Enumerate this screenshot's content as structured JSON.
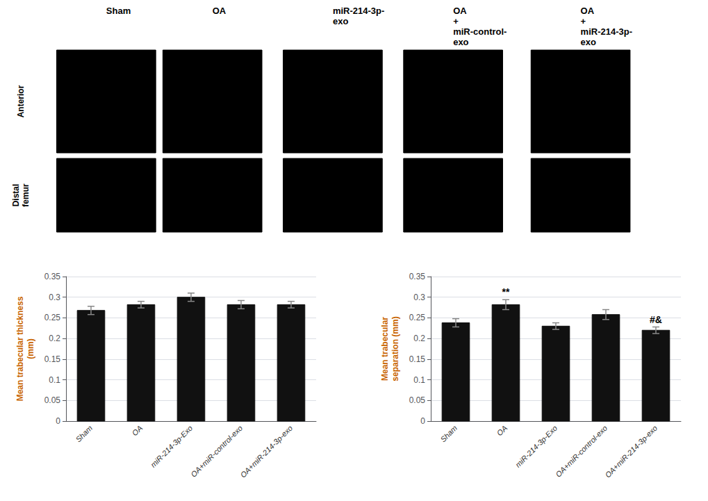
{
  "chart_data": [
    {
      "type": "image_grid",
      "col_labels": [
        "Sham",
        "OA",
        "miR-214-3p-\nexo",
        "OA\n+\nmiR-control-\nexo",
        "OA\n+\nmiR-214-3p-\nexo"
      ],
      "row_labels": [
        "Anterior",
        "Distal\nfemur"
      ]
    },
    {
      "type": "bar",
      "categories": [
        "Sham",
        "OA",
        "miR-214-3p-Exo",
        "OA+miR-control-exo",
        "OA+miR-214-3p-exo"
      ],
      "values": [
        0.268,
        0.282,
        0.3,
        0.282,
        0.282
      ],
      "errors": [
        0.01,
        0.008,
        0.01,
        0.01,
        0.008
      ],
      "color": "#111111",
      "ylabel": "Mean trabecular thickness\n(mm)",
      "ylim": [
        0,
        0.35
      ],
      "yticks": [
        0,
        0.05,
        0.1,
        0.15,
        0.2,
        0.25,
        0.3,
        0.35
      ]
    },
    {
      "type": "bar",
      "categories": [
        "Sham",
        "OA",
        "miR-214-3p-Exo",
        "OA+miR-control-exo",
        "OA+miR-214-3p-exo"
      ],
      "values": [
        0.238,
        0.282,
        0.23,
        0.258,
        0.22
      ],
      "errors": [
        0.01,
        0.012,
        0.008,
        0.012,
        0.008
      ],
      "color": "#111111",
      "ylabel": "Mean trabecular\nseparation (mm)",
      "ylim": [
        0,
        0.35
      ],
      "yticks": [
        0,
        0.05,
        0.1,
        0.15,
        0.2,
        0.25,
        0.3,
        0.35
      ],
      "annotations": [
        {
          "category": "OA",
          "text": "**"
        },
        {
          "category": "OA+miR-214-3p-exo",
          "text": "#&"
        }
      ]
    }
  ]
}
